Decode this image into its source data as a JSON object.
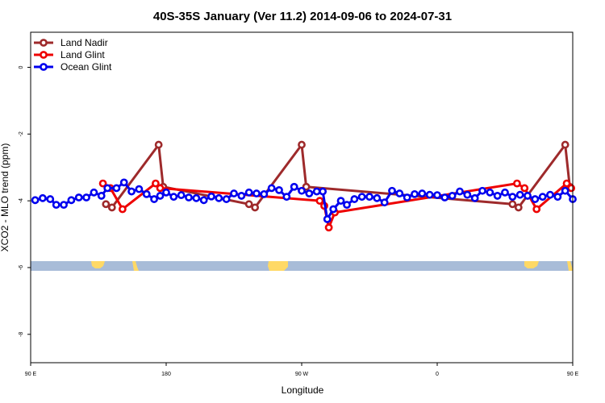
{
  "chart_data": {
    "type": "line",
    "title": "40S-35S January (Ver 11.2)   2014-09-06 to 2024-07-31",
    "xlabel": "Longitude",
    "ylabel": "XCO2 - MLO trend (ppm)",
    "xlim": [
      90,
      450
    ],
    "ylim": [
      -8.85,
      1.05
    ],
    "x_ticks": [
      {
        "value": 90,
        "label": "90 E"
      },
      {
        "value": 180,
        "label": "180"
      },
      {
        "value": 270,
        "label": "90 W"
      },
      {
        "value": 360,
        "label": "0"
      },
      {
        "value": 450,
        "label": "90 E"
      },
      {
        "value": 540,
        "label": "180"
      }
    ],
    "y_ticks": [
      {
        "value": 0,
        "label": "0"
      },
      {
        "value": -2,
        "label": "-2"
      },
      {
        "value": -4,
        "label": "-4"
      },
      {
        "value": -6,
        "label": "-6"
      },
      {
        "value": -8,
        "label": "-8"
      }
    ],
    "legend_position": "top-left",
    "series": [
      {
        "name": "Land Nadir",
        "color": "#9e2a2b",
        "points": [
          [
            140,
            -4.1
          ],
          [
            144,
            -4.2
          ],
          [
            175,
            -2.32
          ],
          [
            178,
            -3.58
          ],
          [
            235,
            -4.1
          ],
          [
            239,
            -4.2
          ],
          [
            270,
            -2.32
          ],
          [
            273,
            -3.58
          ],
          [
            410,
            -4.1
          ],
          [
            414,
            -4.2
          ],
          [
            445,
            -2.32
          ],
          [
            448,
            -3.58
          ]
        ]
      },
      {
        "name": "Land Glint",
        "color": "#ee0000",
        "points": [
          [
            138,
            -3.48
          ],
          [
            143,
            -3.62
          ],
          [
            151,
            -4.25
          ],
          [
            173,
            -3.48
          ],
          [
            176,
            -3.62
          ],
          [
            282,
            -4.0
          ],
          [
            285,
            -4.15
          ],
          [
            288,
            -4.8
          ],
          [
            292,
            -4.35
          ],
          [
            413,
            -3.48
          ],
          [
            418,
            -3.62
          ],
          [
            426,
            -4.25
          ],
          [
            446,
            -3.48
          ],
          [
            449,
            -3.62
          ]
        ]
      },
      {
        "name": "Ocean Glint",
        "color": "#0000ee",
        "points": [
          [
            93,
            -3.98
          ],
          [
            98,
            -3.92
          ],
          [
            103,
            -3.95
          ],
          [
            107,
            -4.12
          ],
          [
            112,
            -4.12
          ],
          [
            117,
            -3.98
          ],
          [
            122,
            -3.9
          ],
          [
            127,
            -3.9
          ],
          [
            132,
            -3.75
          ],
          [
            137,
            -3.85
          ],
          [
            141,
            -3.62
          ],
          [
            147,
            -3.62
          ],
          [
            152,
            -3.45
          ],
          [
            157,
            -3.72
          ],
          [
            162,
            -3.65
          ],
          [
            167,
            -3.8
          ],
          [
            172,
            -3.95
          ],
          [
            176,
            -3.85
          ],
          [
            180,
            -3.75
          ],
          [
            185,
            -3.88
          ],
          [
            190,
            -3.83
          ],
          [
            195,
            -3.9
          ],
          [
            200,
            -3.92
          ],
          [
            205,
            -3.98
          ],
          [
            210,
            -3.87
          ],
          [
            215,
            -3.92
          ],
          [
            220,
            -3.95
          ],
          [
            225,
            -3.78
          ],
          [
            230,
            -3.85
          ],
          [
            235,
            -3.75
          ],
          [
            240,
            -3.78
          ],
          [
            245,
            -3.8
          ],
          [
            250,
            -3.62
          ],
          [
            255,
            -3.68
          ],
          [
            260,
            -3.88
          ],
          [
            265,
            -3.58
          ],
          [
            270,
            -3.7
          ],
          [
            275,
            -3.78
          ],
          [
            280,
            -3.72
          ],
          [
            284,
            -3.72
          ],
          [
            287,
            -4.55
          ],
          [
            291,
            -4.25
          ],
          [
            296,
            -4.0
          ],
          [
            300,
            -4.12
          ],
          [
            305,
            -3.95
          ],
          [
            310,
            -3.88
          ],
          [
            315,
            -3.88
          ],
          [
            320,
            -3.92
          ],
          [
            325,
            -4.05
          ],
          [
            330,
            -3.7
          ],
          [
            335,
            -3.78
          ],
          [
            340,
            -3.9
          ],
          [
            345,
            -3.8
          ],
          [
            350,
            -3.78
          ],
          [
            355,
            -3.82
          ],
          [
            360,
            -3.83
          ],
          [
            365,
            -3.9
          ],
          [
            370,
            -3.85
          ],
          [
            375,
            -3.72
          ],
          [
            380,
            -3.82
          ],
          [
            385,
            -3.92
          ],
          [
            390,
            -3.7
          ],
          [
            395,
            -3.75
          ],
          [
            400,
            -3.85
          ],
          [
            405,
            -3.75
          ],
          [
            410,
            -3.88
          ],
          [
            415,
            -3.82
          ],
          [
            420,
            -3.85
          ],
          [
            425,
            -3.95
          ],
          [
            430,
            -3.88
          ],
          [
            435,
            -3.82
          ],
          [
            440,
            -3.88
          ],
          [
            445,
            -3.7
          ],
          [
            450,
            -3.95
          ]
        ]
      }
    ]
  }
}
